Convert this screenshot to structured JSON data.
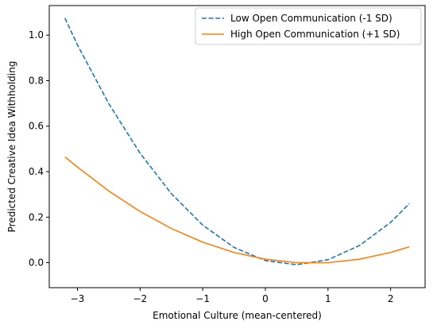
{
  "chart_data": {
    "type": "line",
    "xlabel": "Emotional Culture (mean-centered)",
    "ylabel": "Predicted Creative Idea Withholding",
    "xlim": [
      -3.45,
      2.55
    ],
    "ylim": [
      -0.11,
      1.13
    ],
    "xticks": [
      -3,
      -2,
      -1,
      0,
      1,
      2
    ],
    "xtick_labels": [
      "−3",
      "−2",
      "−1",
      "0",
      "1",
      "2"
    ],
    "yticks": [
      0.0,
      0.2,
      0.4,
      0.6,
      0.8,
      1.0
    ],
    "ytick_labels": [
      "0.0",
      "0.2",
      "0.4",
      "0.6",
      "0.8",
      "1.0"
    ],
    "grid": false,
    "legend_position": "top-right",
    "series": [
      {
        "name": "Low Open Communication (-1 SD)",
        "color": "#1f77b4",
        "style": "dashed",
        "x": [
          -3.2,
          -3.0,
          -2.5,
          -2.0,
          -1.5,
          -1.0,
          -0.5,
          0.0,
          0.5,
          1.0,
          1.5,
          2.0,
          2.3
        ],
        "y": [
          1.075,
          0.957,
          0.699,
          0.481,
          0.303,
          0.165,
          0.067,
          0.009,
          -0.009,
          0.013,
          0.075,
          0.177,
          0.26
        ]
      },
      {
        "name": "High Open Communication (+1 SD)",
        "color": "#ff7f0e",
        "style": "solid",
        "x": [
          -3.2,
          -3.0,
          -2.5,
          -2.0,
          -1.5,
          -1.0,
          -0.5,
          0.0,
          0.5,
          1.0,
          1.5,
          2.0,
          2.3
        ],
        "y": [
          0.465,
          0.42,
          0.315,
          0.225,
          0.15,
          0.09,
          0.045,
          0.015,
          0.0,
          0.0,
          0.015,
          0.045,
          0.07
        ]
      }
    ]
  }
}
